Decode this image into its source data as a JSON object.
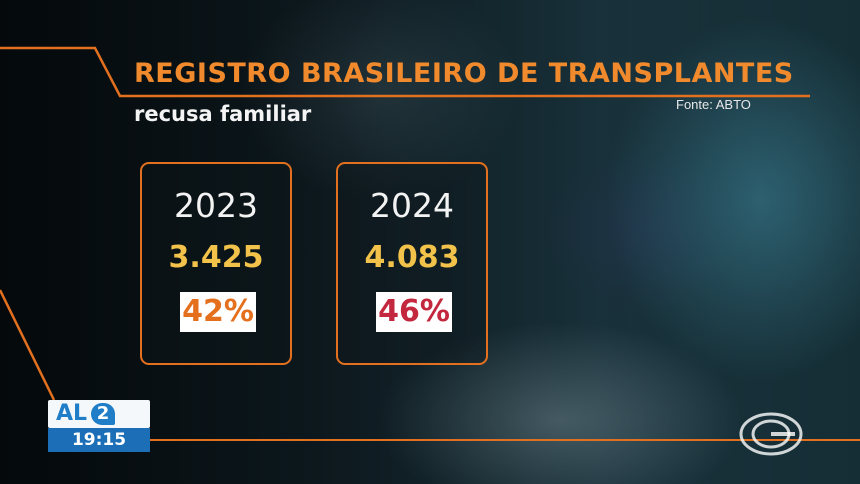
{
  "header": {
    "title": "REGISTRO BRASILEIRO DE TRANSPLANTES",
    "subtitle": "recusa familiar",
    "source": "Fonte: ABTO"
  },
  "cards": [
    {
      "year": "2023",
      "count": "3.425",
      "percent": "42%",
      "percent_color": "#e46f1c"
    },
    {
      "year": "2024",
      "count": "4.083",
      "percent": "46%",
      "percent_color": "#c3283e"
    }
  ],
  "broadcast": {
    "channel": "AL",
    "channel_number": "2",
    "time": "19:15"
  },
  "colors": {
    "accent": "#e2701f",
    "count": "#f2c24a",
    "channel_blue": "#1f7ec7"
  },
  "icons": [
    "network-logo-icon"
  ]
}
